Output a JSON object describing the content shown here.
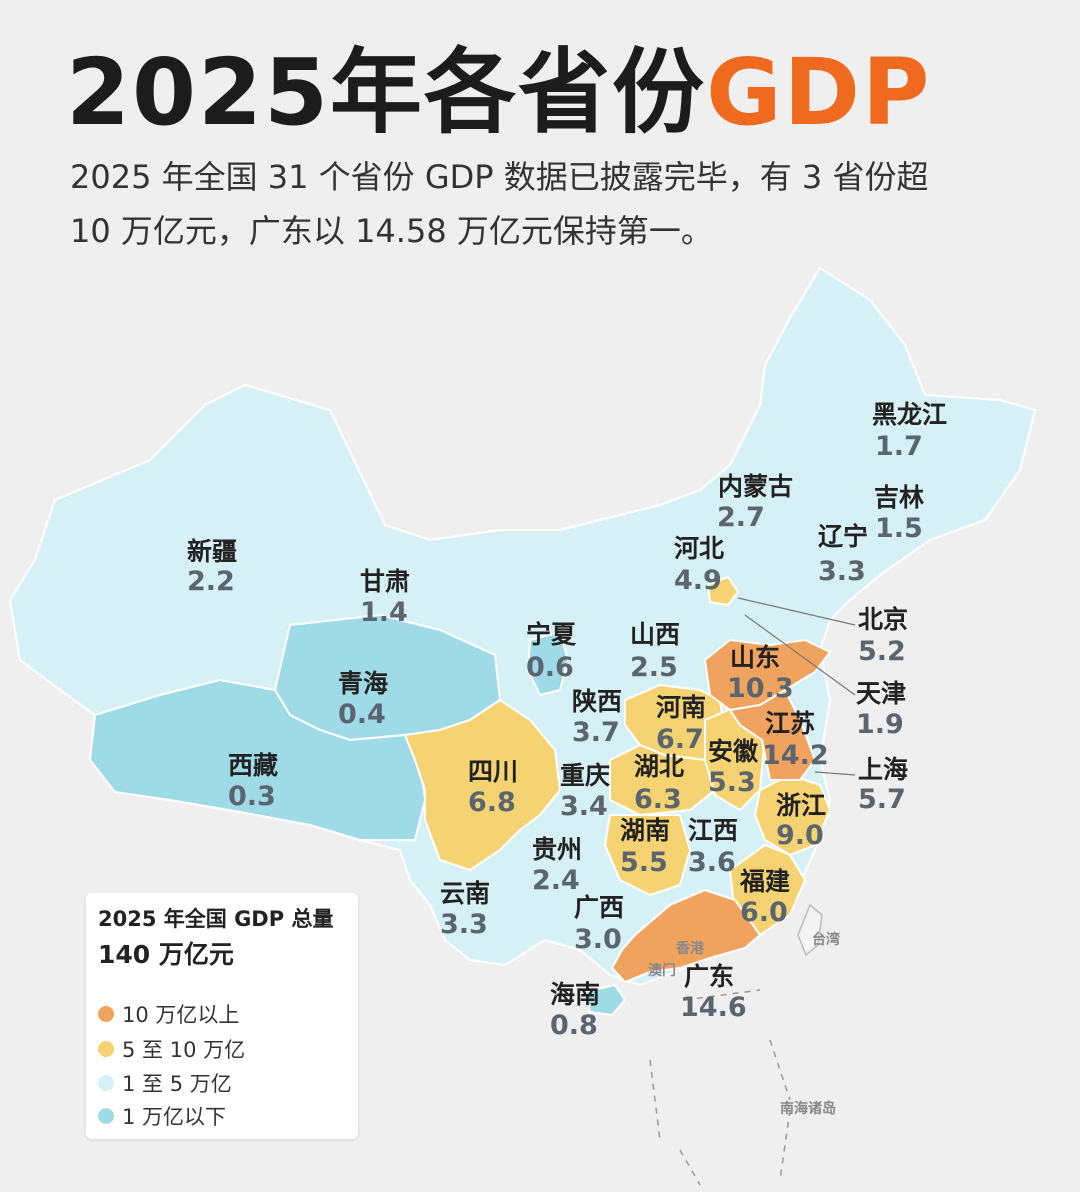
{
  "title": {
    "main": "2025年各省份",
    "highlight": "GDP"
  },
  "intro": {
    "line1": "2025 年全国 31 个省份 GDP 数据已披露完毕，有 3 省份超",
    "line2": "10 万亿元，广东以 14.58 万亿元保持第一。"
  },
  "legend": {
    "title": "2025 年全国 GDP 总量",
    "total": "140 万亿元",
    "items": [
      {
        "label": "10 万亿以上",
        "color": "#f0a35e"
      },
      {
        "label": "5 至 10 万亿",
        "color": "#f5d372"
      },
      {
        "label": "1 至 5 万亿",
        "color": "#d6f1f6"
      },
      {
        "label": "1 万亿以下",
        "color": "#9fdbe6"
      }
    ]
  },
  "provinces": [
    {
      "name": "黑龙江",
      "value": "1.7"
    },
    {
      "name": "吉林",
      "value": "1.5"
    },
    {
      "name": "内蒙古",
      "value": "2.7"
    },
    {
      "name": "辽宁",
      "value": "3.3"
    },
    {
      "name": "河北",
      "value": "4.9"
    },
    {
      "name": "北京",
      "value": "5.2"
    },
    {
      "name": "天津",
      "value": "1.9"
    },
    {
      "name": "新疆",
      "value": "2.2"
    },
    {
      "name": "甘肃",
      "value": "1.4"
    },
    {
      "name": "宁夏",
      "value": "0.6"
    },
    {
      "name": "山西",
      "value": "2.5"
    },
    {
      "name": "山东",
      "value": "10.3"
    },
    {
      "name": "青海",
      "value": "0.4"
    },
    {
      "name": "陕西",
      "value": "3.7"
    },
    {
      "name": "河南",
      "value": "6.7"
    },
    {
      "name": "江苏",
      "value": "14.2"
    },
    {
      "name": "西藏",
      "value": "0.3"
    },
    {
      "name": "四川",
      "value": "6.8"
    },
    {
      "name": "重庆",
      "value": "3.4"
    },
    {
      "name": "湖北",
      "value": "6.3"
    },
    {
      "name": "安徽",
      "value": "5.3"
    },
    {
      "name": "上海",
      "value": "5.7"
    },
    {
      "name": "浙江",
      "value": "9.0"
    },
    {
      "name": "湖南",
      "value": "5.5"
    },
    {
      "name": "江西",
      "value": "3.6"
    },
    {
      "name": "贵州",
      "value": "2.4"
    },
    {
      "name": "云南",
      "value": "3.3"
    },
    {
      "name": "福建",
      "value": "6.0"
    },
    {
      "name": "广西",
      "value": "3.0"
    },
    {
      "name": "广东",
      "value": "14.6"
    },
    {
      "name": "海南",
      "value": "0.8"
    }
  ],
  "map_labels": {
    "taiwan": "台湾",
    "hongkong": "香港",
    "macau": "澳门",
    "south_sea": "南海诸岛"
  },
  "colors": {
    "accent": "#ef6a1e",
    "over10": "#f0a35e",
    "mid": "#f5d372",
    "low": "#d6f1f6",
    "under1": "#9fdbe6"
  }
}
